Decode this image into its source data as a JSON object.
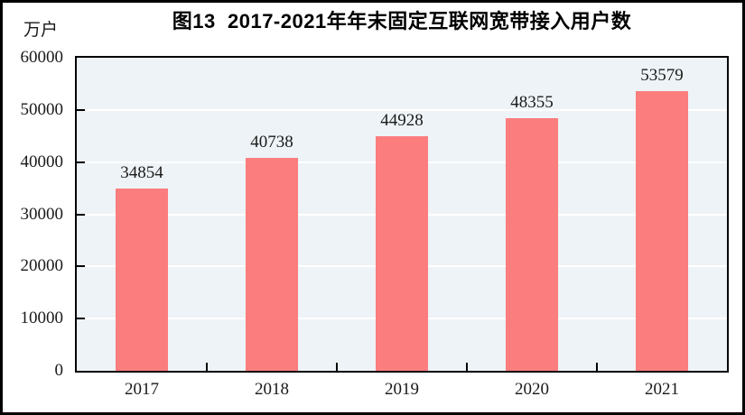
{
  "figure": {
    "title": "图13  2017-2021年年末固定互联网宽带接入用户数",
    "unit_label": "万户"
  },
  "colors": {
    "bar": "#fb7d7d",
    "plot_background": "#edf3f7",
    "gridline": "#ffffff",
    "axis": "#000000",
    "text": "#1a1a1a",
    "frame_border": "#000000",
    "page_background": "#ffffff"
  },
  "chart_data": {
    "type": "bar",
    "title": "图13  2017-2021年年末固定互联网宽带接入用户数",
    "categories": [
      "2017",
      "2018",
      "2019",
      "2020",
      "2021"
    ],
    "values": [
      34854,
      40738,
      44928,
      48355,
      53579
    ],
    "xlabel": "",
    "ylabel": "万户",
    "ylim": [
      0,
      60000
    ],
    "yticks": [
      0,
      10000,
      20000,
      30000,
      40000,
      50000,
      60000
    ],
    "gridline_values": [
      10000,
      20000,
      30000,
      40000,
      50000
    ],
    "grid": true,
    "data_labels": true,
    "legend_position": "none"
  }
}
